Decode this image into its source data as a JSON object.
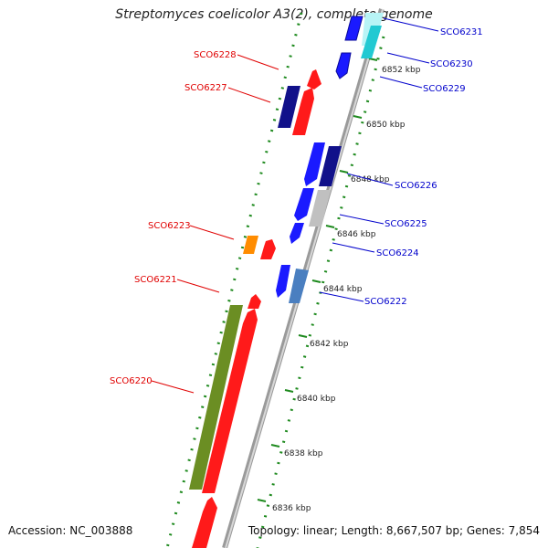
{
  "header": {
    "title": "Streptomyces coelicolor A3(2), complete genome"
  },
  "footer": {
    "accession": "Accession: NC_003888",
    "summary": "Topology: linear; Length: 8,667,507 bp; Genes: 7,854"
  },
  "scale_labels": [
    "6852 kbp",
    "6850 kbp",
    "6848 kbp",
    "6846 kbp",
    "6844 kbp",
    "6842 kbp",
    "6840 kbp",
    "6838 kbp",
    "6836 kbp"
  ],
  "genes": [
    {
      "id": "SCO6231",
      "strand": "forward",
      "color": "#29c4d0"
    },
    {
      "id": "SCO6230",
      "strand": "forward",
      "color": "#22c9d2"
    },
    {
      "id": "SCO6229",
      "strand": "forward",
      "color": "#1a1aff"
    },
    {
      "id": "SCO6228",
      "strand": "reverse",
      "color": "#ff1a1a"
    },
    {
      "id": "SCO6227",
      "strand": "reverse",
      "color": "#ff1a1a"
    },
    {
      "id": "SCO6226",
      "strand": "forward",
      "color": "#1a1aff"
    },
    {
      "id": "SCO6225",
      "strand": "forward",
      "color": "#1a1aff"
    },
    {
      "id": "SCO6224",
      "strand": "forward",
      "color": "#1a1aff"
    },
    {
      "id": "SCO6223",
      "strand": "reverse",
      "color": "#ff1a1a"
    },
    {
      "id": "SCO6222",
      "strand": "forward",
      "color": "#1a1aff"
    },
    {
      "id": "SCO6221",
      "strand": "reverse",
      "color": "#ff1a1a"
    },
    {
      "id": "SCO6220",
      "strand": "reverse",
      "color": "#ff1a1a"
    }
  ],
  "colors": {
    "reverse_label": "#e00000",
    "forward_label": "#0000cc",
    "tick_marks": "#1e8a1e",
    "backbone": "#8a8a8a"
  }
}
